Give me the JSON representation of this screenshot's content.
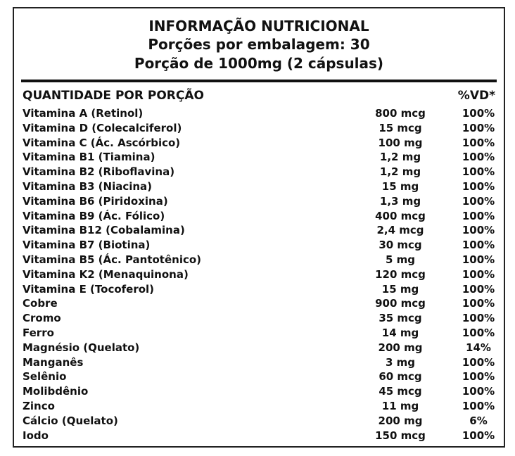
{
  "header": {
    "title": "INFORMAÇÃO NUTRICIONAL",
    "servings": "Porções por embalagem: 30",
    "portion": "Porção de 1000mg (2 cápsulas)"
  },
  "table": {
    "columns": [
      "QUANTIDADE POR PORÇÃO",
      "%VD*"
    ],
    "rows": [
      [
        "Vitamina A (Retinol)",
        "800 mcg",
        "100%"
      ],
      [
        "Vitamina D (Colecalciferol)",
        "15 mcg",
        "100%"
      ],
      [
        "Vitamina C (Ác. Ascórbico)",
        "100 mg",
        "100%"
      ],
      [
        "Vitamina B1 (Tiamina)",
        "1,2 mg",
        "100%"
      ],
      [
        "Vitamina B2 (Riboflavina)",
        "1,2 mg",
        "100%"
      ],
      [
        "Vitamina B3 (Niacina)",
        "15 mg",
        "100%"
      ],
      [
        "Vitamina B6 (Piridoxina)",
        "1,3 mg",
        "100%"
      ],
      [
        "Vitamina B9 (Ác. Fólico)",
        "400 mcg",
        "100%"
      ],
      [
        "Vitamina B12 (Cobalamina)",
        "2,4 mcg",
        "100%"
      ],
      [
        "Vitamina B7 (Biotina)",
        "30 mcg",
        "100%"
      ],
      [
        "Vitamina B5 (Ác. Pantotênico)",
        "5 mg",
        "100%"
      ],
      [
        "Vitamina K2 (Menaquinona)",
        "120 mcg",
        "100%"
      ],
      [
        "Vitamina E (Tocoferol)",
        "15 mg",
        "100%"
      ],
      [
        "Cobre",
        "900 mcg",
        "100%"
      ],
      [
        "Cromo",
        "35 mcg",
        "100%"
      ],
      [
        "Ferro",
        "14 mg",
        "100%"
      ],
      [
        "Magnésio (Quelato)",
        "200 mg",
        "14%"
      ],
      [
        "Manganês",
        "3 mg",
        "100%"
      ],
      [
        "Selênio",
        "60 mcg",
        "100%"
      ],
      [
        "Molibdênio",
        "45 mcg",
        "100%"
      ],
      [
        "Zinco",
        "11 mg",
        "100%"
      ],
      [
        "Cálcio (Quelato)",
        "200 mg",
        "6%"
      ],
      [
        "Iodo",
        "150 mcg",
        "100%"
      ]
    ]
  }
}
